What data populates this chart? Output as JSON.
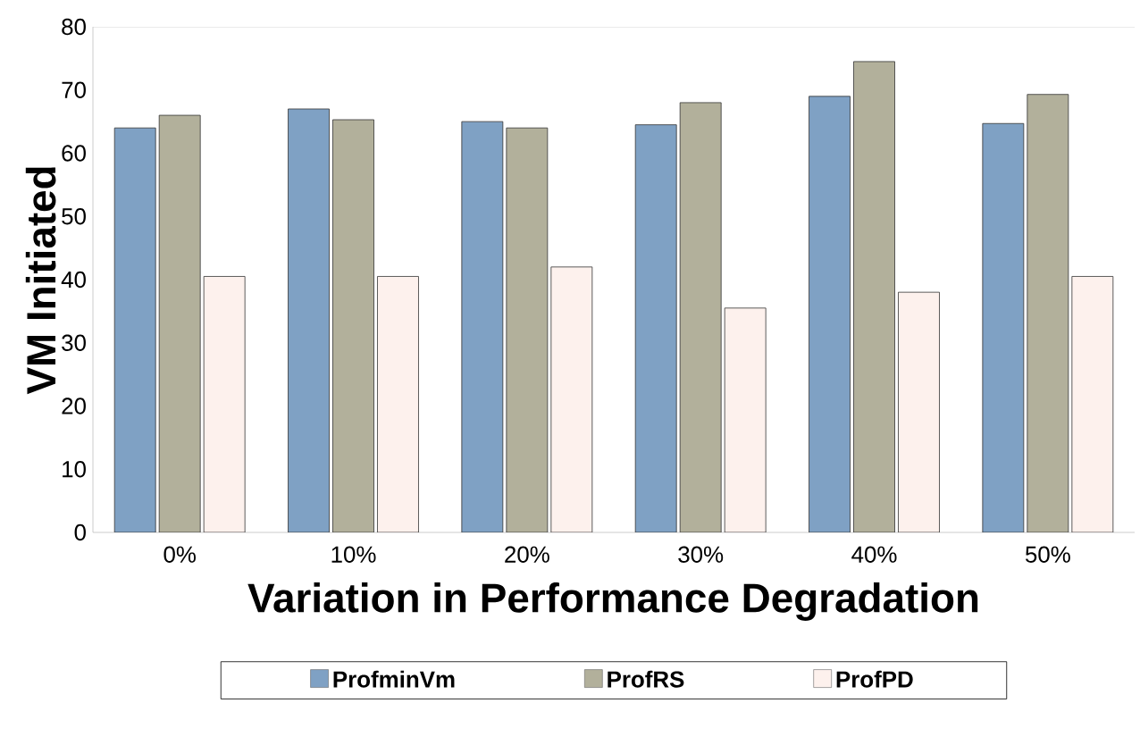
{
  "chart_data": {
    "type": "bar",
    "xlabel": "Variation in Performance Degradation",
    "ylabel": "VM Initiated",
    "categories": [
      "0%",
      "10%",
      "20%",
      "30%",
      "40%",
      "50%"
    ],
    "series": [
      {
        "name": "ProfminVm",
        "color": "#7fa1c4",
        "values": [
          64,
          67,
          65,
          64.5,
          69,
          64.7
        ]
      },
      {
        "name": "ProfRS",
        "color": "#b2b09b",
        "values": [
          66,
          65.3,
          64,
          68,
          74.5,
          69.3
        ]
      },
      {
        "name": "ProfPD",
        "color": "#fdf1ed",
        "values": [
          40.5,
          40.5,
          42,
          35.5,
          38,
          40.5
        ]
      }
    ],
    "ylim": [
      0,
      80
    ],
    "yticks": [
      0,
      10,
      20,
      30,
      40,
      50,
      60,
      70,
      80
    ],
    "grid": false,
    "legend": "bottom"
  }
}
